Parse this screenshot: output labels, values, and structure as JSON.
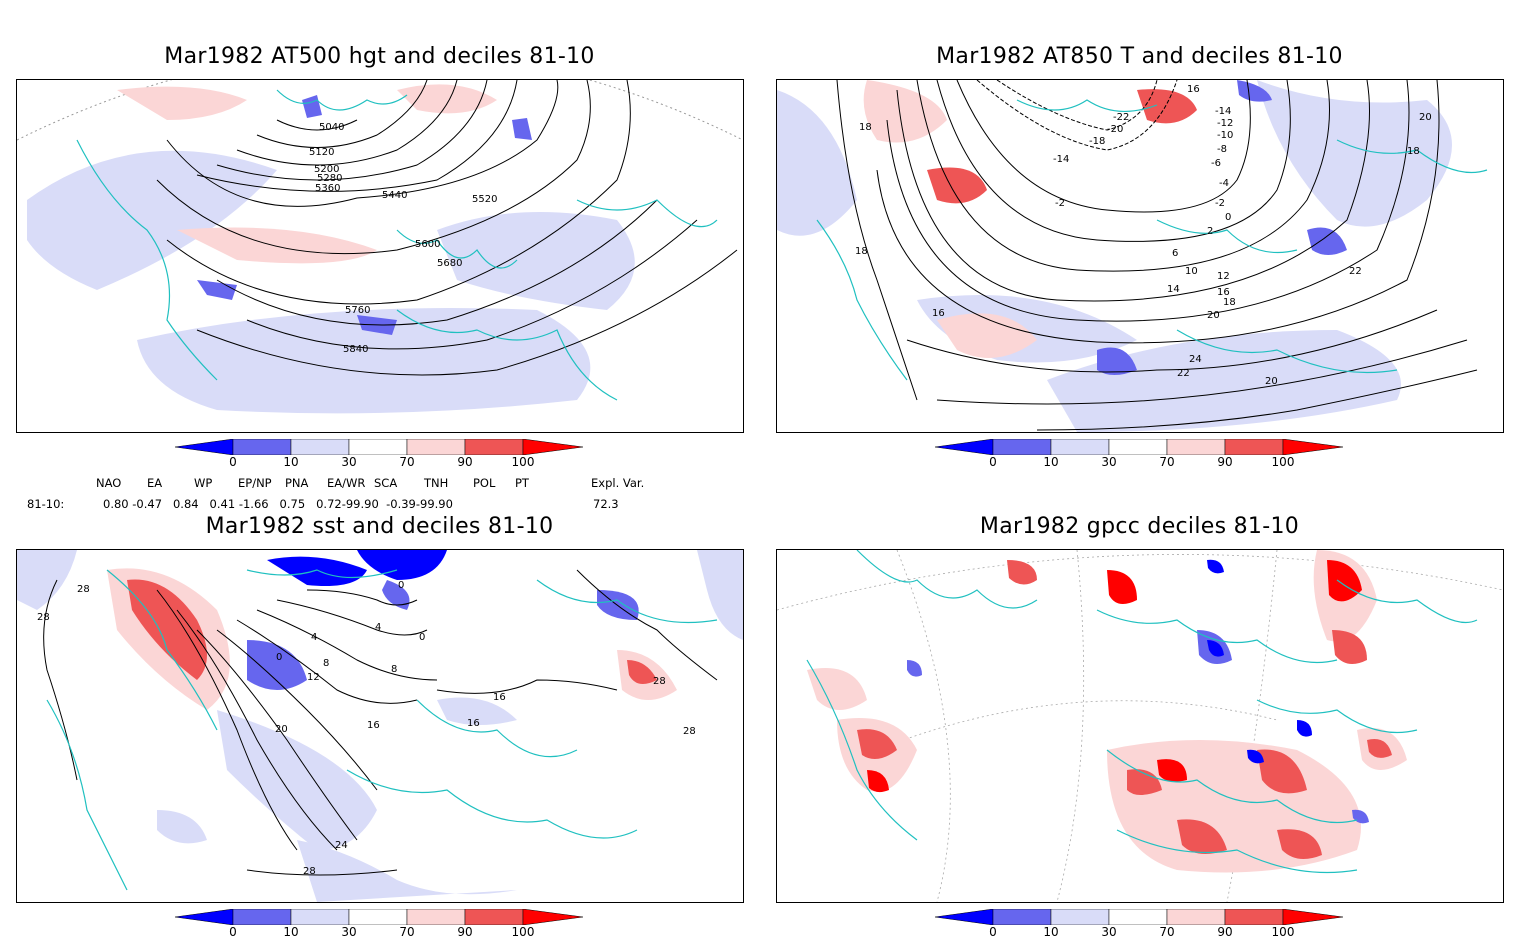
{
  "panels": [
    {
      "title": "Mar1982 AT500 hgt and deciles 81-10",
      "contour_labels": [
        "5040",
        "5120",
        "5200",
        "5280",
        "5360",
        "5440",
        "5520",
        "5600",
        "5680",
        "5760",
        "5840"
      ]
    },
    {
      "title": "Mar1982 AT850 T and deciles 81-10",
      "contour_labels": [
        "16",
        "-14",
        "-12",
        "-10",
        "-8",
        "-6",
        "-4",
        "-2",
        "0",
        "2",
        "6",
        "10",
        "12",
        "14",
        "16",
        "18",
        "20",
        "22",
        "24",
        "20",
        "18",
        "16",
        "18",
        "-18",
        "-20",
        "-22",
        "-14",
        "-2",
        "20",
        "18",
        "22"
      ]
    },
    {
      "title": "Mar1982 sst and deciles 81-10",
      "contour_labels": [
        "28",
        "28",
        "0",
        "0",
        "4",
        "4",
        "8",
        "8",
        "12",
        "16",
        "16",
        "16",
        "20",
        "24",
        "28",
        "28",
        "28",
        "0"
      ]
    },
    {
      "title": "Mar1982 gpcc deciles 81-10",
      "contour_labels": []
    }
  ],
  "colorbar": {
    "ticks": [
      "0",
      "10",
      "30",
      "70",
      "90",
      "100"
    ],
    "colors": [
      "#0000ff",
      "#6666ee",
      "#d9dcf8",
      "#ffffff",
      "#fbd6d6",
      "#ee5555",
      "#ff0000"
    ]
  },
  "teleconnections": {
    "headers": [
      "NAO",
      "EA",
      "WP",
      "EP/NP",
      "PNA",
      "EA/WR",
      "SCA",
      "TNH",
      "POL",
      "PT",
      "Expl. Var."
    ],
    "row_label": "81-10:",
    "values_line": "0.80 -0.47   0.84   0.41 -1.66   0.75   0.72-99.90  -0.39-99.90",
    "expl_var": "72.3"
  }
}
